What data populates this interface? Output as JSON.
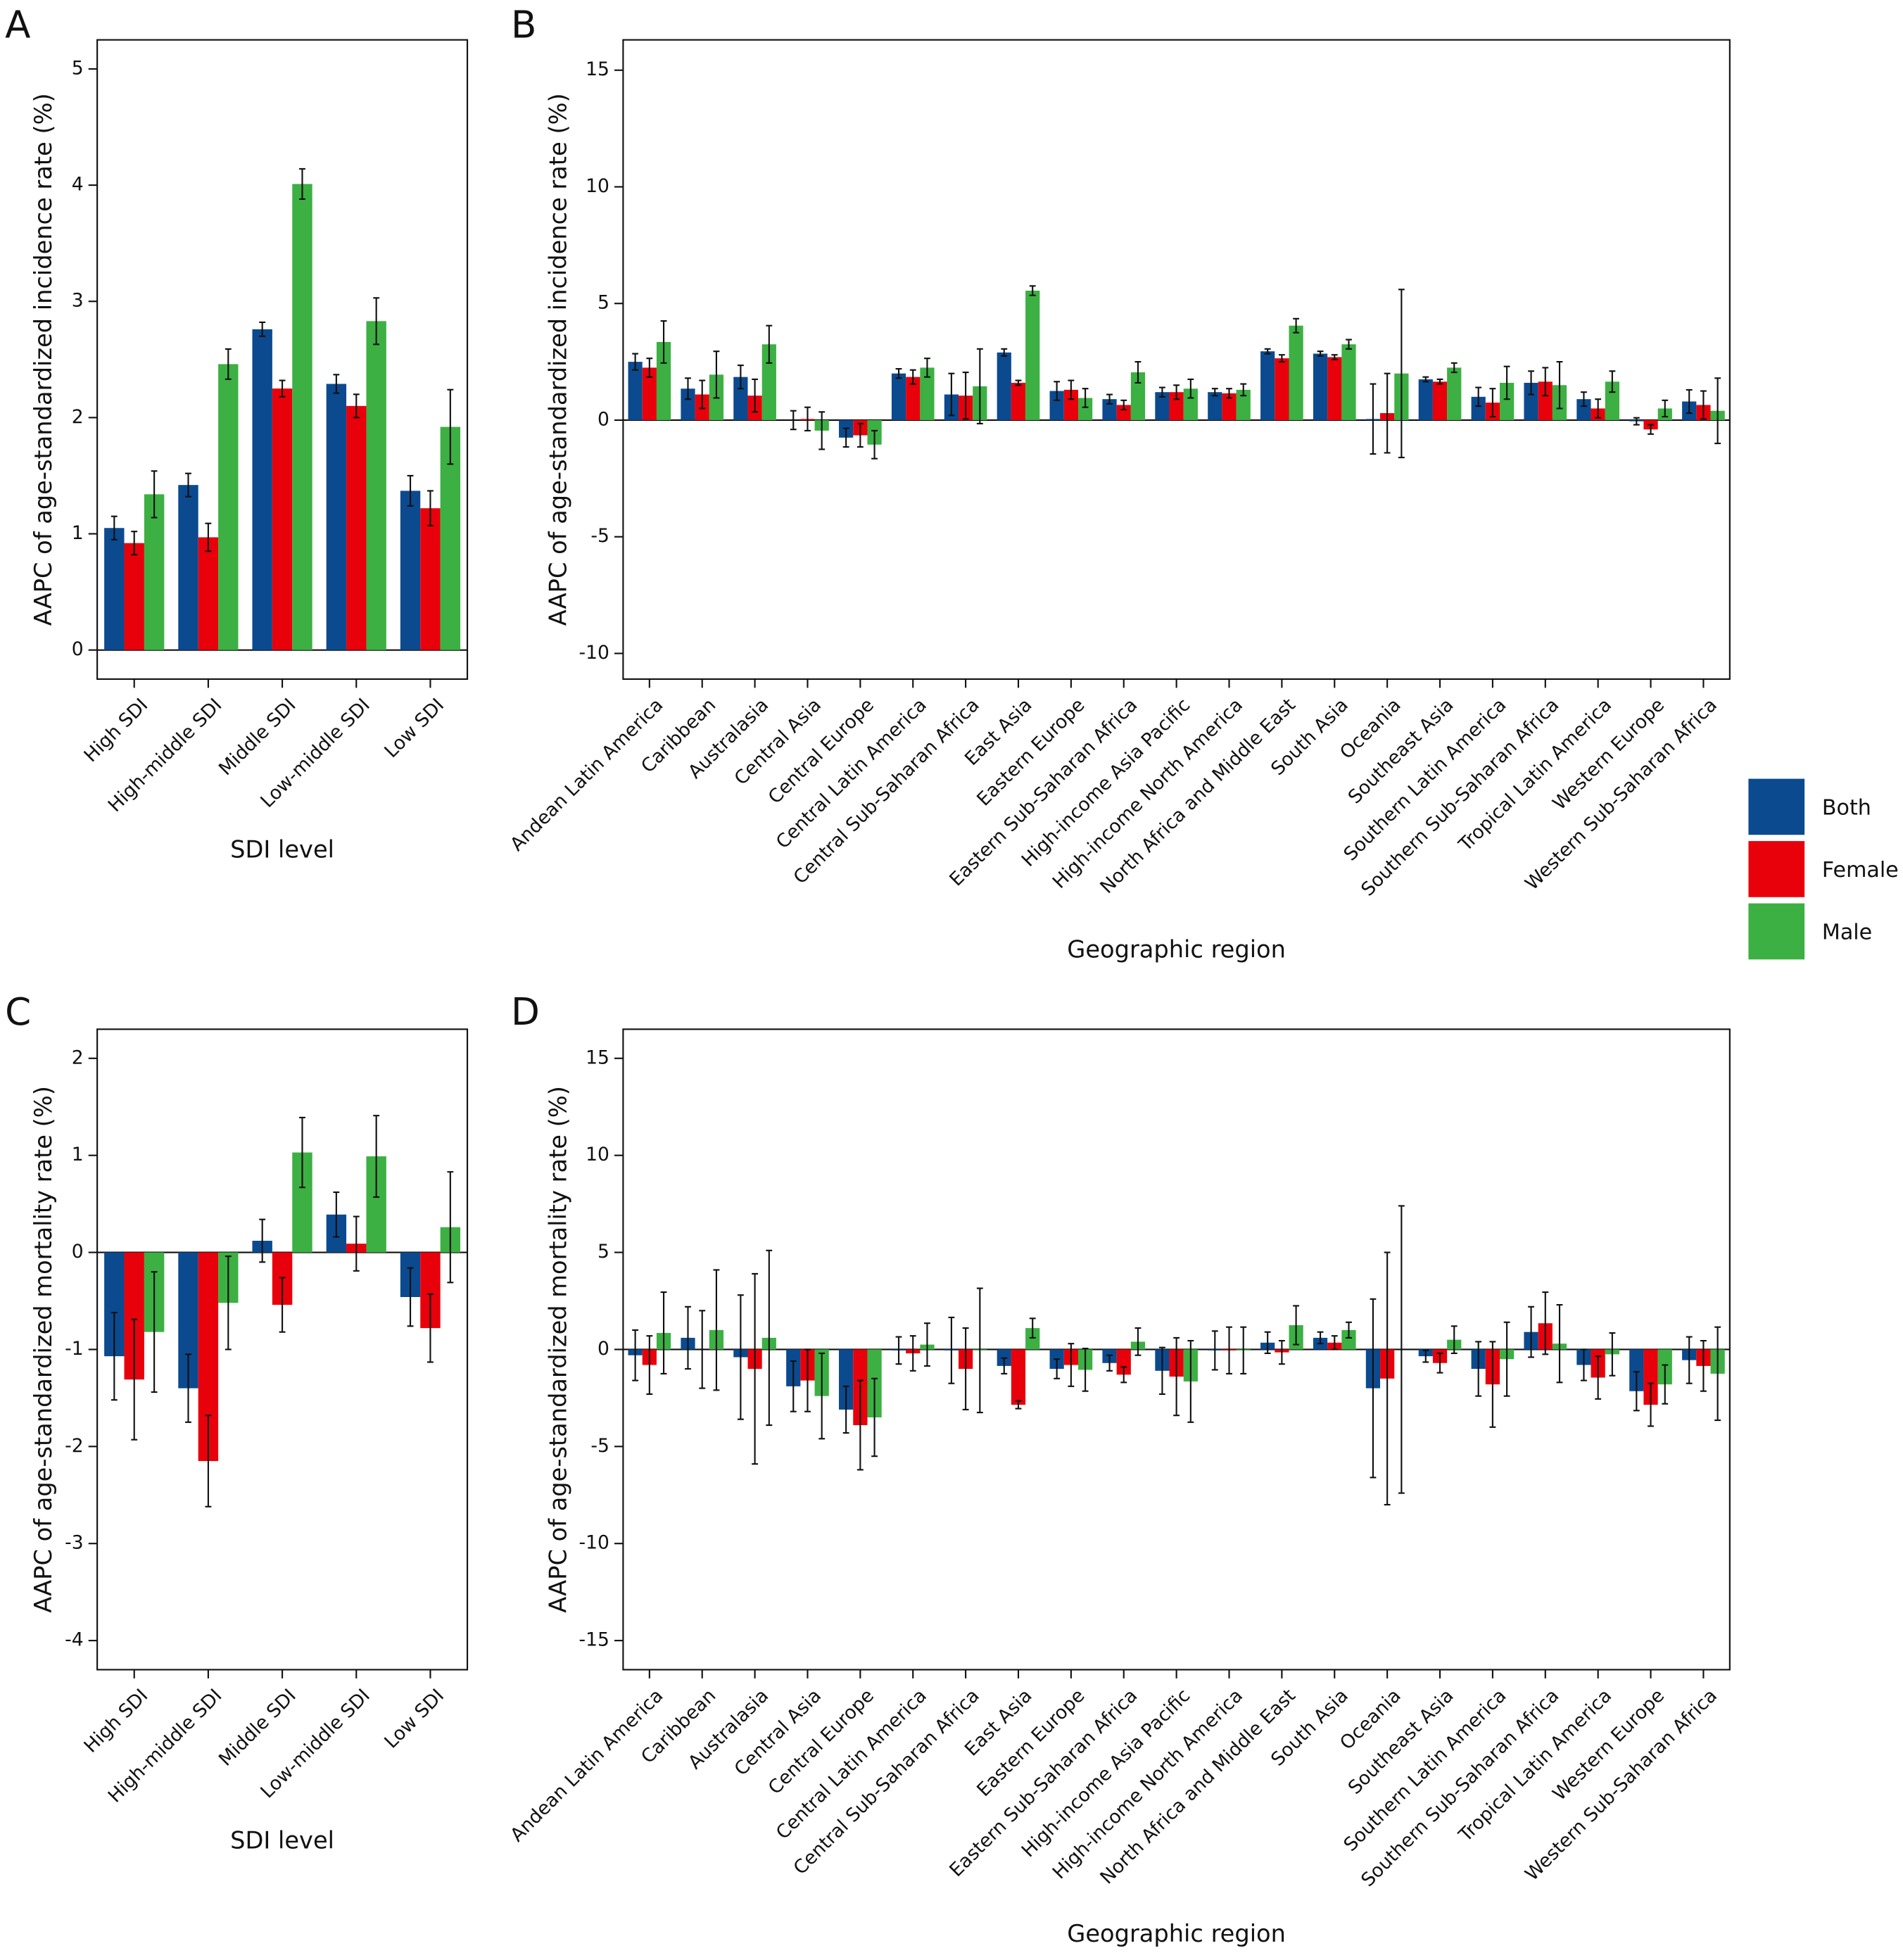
{
  "chart_data": [
    {
      "type": "bar",
      "label": "A",
      "y_label": "AAPC of age-standardized incidence rate (%)",
      "x_label": "SDI level",
      "categories": [
        "High SDI",
        "High-middle SDI",
        "Middle SDI",
        "Low-middle SDI",
        "Low SDI"
      ],
      "series": [
        {
          "name": "Both",
          "color": "#0b4a8f",
          "values": [
            1.05,
            1.42,
            2.76,
            2.29,
            1.37
          ],
          "errors": [
            0.1,
            0.1,
            0.06,
            0.08,
            0.13
          ]
        },
        {
          "name": "Female",
          "color": "#e8000b",
          "values": [
            0.92,
            0.97,
            2.25,
            2.1,
            1.22
          ],
          "errors": [
            0.1,
            0.12,
            0.07,
            0.1,
            0.15
          ]
        },
        {
          "name": "Male",
          "color": "#3cb043",
          "values": [
            1.34,
            2.46,
            4.01,
            2.83,
            1.92
          ],
          "errors": [
            0.2,
            0.13,
            0.13,
            0.2,
            0.32
          ]
        }
      ],
      "ylim": [
        -0.25,
        5.25
      ],
      "yticks": [
        0,
        1,
        2,
        3,
        4,
        5
      ],
      "legend": "right"
    },
    {
      "type": "bar",
      "label": "B",
      "y_label": "AAPC of age-standardized incidence rate (%)",
      "x_label": "Geographic region",
      "categories": [
        "Andean Latin America",
        "Caribbean",
        "Australasia",
        "Central Asia",
        "Central Europe",
        "Central Latin America",
        "Central Sub-Saharan Africa",
        "East Asia",
        "Eastern Europe",
        "Eastern Sub-Saharan Africa",
        "High-income Asia Pacific",
        "High-income North America",
        "North Africa and Middle East",
        "South Asia",
        "Oceania",
        "Southeast Asia",
        "Southern Latin America",
        "Southern Sub-Saharan Africa",
        "Tropical Latin America",
        "Western Europe",
        "Western Sub-Saharan Africa"
      ],
      "series": [
        {
          "color": "#0b4a8f",
          "values": [
            2.5,
            1.35,
            1.85,
            0.0,
            -0.75,
            2.0,
            1.1,
            2.9,
            1.25,
            0.9,
            1.2,
            1.2,
            2.95,
            2.85,
            0.05,
            1.75,
            1.0,
            1.6,
            0.9,
            -0.05,
            0.8
          ],
          "errors": [
            0.35,
            0.45,
            0.5,
            0.4,
            0.4,
            0.2,
            0.9,
            0.15,
            0.4,
            0.2,
            0.2,
            0.15,
            0.1,
            0.1,
            1.5,
            0.1,
            0.4,
            0.5,
            0.3,
            0.15,
            0.5
          ]
        },
        {
          "color": "#e8000b",
          "values": [
            2.25,
            1.1,
            1.05,
            0.05,
            -0.65,
            1.85,
            1.05,
            1.6,
            1.3,
            0.65,
            1.2,
            1.15,
            2.65,
            2.7,
            0.3,
            1.65,
            0.75,
            1.65,
            0.5,
            -0.4,
            0.65
          ],
          "errors": [
            0.4,
            0.6,
            0.7,
            0.5,
            0.5,
            0.3,
            1.0,
            0.1,
            0.4,
            0.2,
            0.3,
            0.2,
            0.15,
            0.1,
            1.7,
            0.1,
            0.6,
            0.6,
            0.4,
            0.2,
            0.6
          ]
        },
        {
          "color": "#3cb043",
          "values": [
            3.35,
            1.95,
            3.25,
            -0.45,
            -1.05,
            2.25,
            1.45,
            5.55,
            0.95,
            2.05,
            1.35,
            1.3,
            4.05,
            3.25,
            2.0,
            2.25,
            1.6,
            1.5,
            1.65,
            0.5,
            0.4
          ],
          "errors": [
            0.9,
            1.0,
            0.8,
            0.8,
            0.6,
            0.4,
            1.6,
            0.2,
            0.4,
            0.45,
            0.4,
            0.25,
            0.3,
            0.2,
            3.6,
            0.2,
            0.7,
            1.0,
            0.45,
            0.35,
            1.4
          ]
        }
      ],
      "ylim": [
        -11.1,
        16.3
      ],
      "yticks": [
        -10,
        -5,
        0,
        5,
        10,
        15
      ]
    },
    {
      "type": "bar",
      "label": "C",
      "y_label": "AAPC of age-standardized mortality rate (%)",
      "x_label": "SDI level",
      "categories": [
        "High SDI",
        "High-middle SDI",
        "Middle SDI",
        "Low-middle SDI",
        "Low SDI"
      ],
      "series": [
        {
          "color": "#0b4a8f",
          "values": [
            -1.07,
            -1.4,
            0.12,
            0.39,
            -0.46
          ],
          "errors": [
            0.45,
            0.35,
            0.22,
            0.23,
            0.3
          ]
        },
        {
          "color": "#e8000b",
          "values": [
            -1.31,
            -2.15,
            -0.54,
            0.09,
            -0.78
          ],
          "errors": [
            0.62,
            0.47,
            0.28,
            0.28,
            0.35
          ]
        },
        {
          "color": "#3cb043",
          "values": [
            -0.82,
            -0.52,
            1.03,
            0.99,
            0.26
          ],
          "errors": [
            0.62,
            0.48,
            0.36,
            0.42,
            0.57
          ]
        }
      ],
      "ylim": [
        -4.3,
        2.3
      ],
      "yticks": [
        -4,
        -3,
        -2,
        -1,
        0,
        1,
        2
      ]
    },
    {
      "type": "bar",
      "label": "D",
      "y_label": "AAPC of age-standardized mortality rate (%)",
      "x_label": "Geographic region",
      "categories": [
        "Andean Latin America",
        "Caribbean",
        "Australasia",
        "Central Asia",
        "Central Europe",
        "Central Latin America",
        "Central Sub-Saharan Africa",
        "East Asia",
        "Eastern Europe",
        "Eastern Sub-Saharan Africa",
        "High-income Asia Pacific",
        "High-income North America",
        "North Africa and Middle East",
        "South Asia",
        "Oceania",
        "Southeast Asia",
        "Southern Latin America",
        "Southern Sub-Saharan Africa",
        "Tropical Latin America",
        "Western Europe",
        "Western Sub-Saharan Africa"
      ],
      "series": [
        {
          "color": "#0b4a8f",
          "values": [
            -0.3,
            0.6,
            -0.4,
            -1.9,
            -3.1,
            -0.05,
            -0.05,
            -0.85,
            -1.0,
            -0.7,
            -1.1,
            -0.05,
            0.35,
            0.6,
            -2.0,
            -0.35,
            -1.0,
            0.9,
            -0.8,
            -2.15,
            -0.55
          ],
          "errors": [
            1.3,
            1.6,
            3.2,
            1.3,
            1.2,
            0.7,
            1.7,
            0.4,
            0.5,
            0.4,
            1.2,
            1.0,
            0.55,
            0.3,
            4.6,
            0.3,
            1.4,
            1.3,
            0.8,
            1.0,
            1.2
          ]
        },
        {
          "color": "#e8000b",
          "values": [
            -0.8,
            0.0,
            -1.0,
            -1.6,
            -3.9,
            -0.2,
            -1.0,
            -2.85,
            -0.8,
            -1.3,
            -1.4,
            -0.05,
            -0.15,
            0.35,
            -1.5,
            -0.7,
            -1.8,
            1.35,
            -1.45,
            -2.85,
            -0.85
          ],
          "errors": [
            1.5,
            2.0,
            4.9,
            1.6,
            2.3,
            0.9,
            2.1,
            0.2,
            1.1,
            0.4,
            2.0,
            1.2,
            0.6,
            0.35,
            6.5,
            0.5,
            2.2,
            1.6,
            1.1,
            1.1,
            1.3
          ]
        },
        {
          "color": "#3cb043",
          "values": [
            0.85,
            1.0,
            0.6,
            -2.4,
            -3.5,
            0.25,
            -0.05,
            1.1,
            -1.05,
            0.4,
            -1.65,
            -0.05,
            1.25,
            1.0,
            0.0,
            0.5,
            -0.5,
            0.3,
            -0.25,
            -1.8,
            -1.25
          ],
          "errors": [
            2.1,
            3.1,
            4.5,
            2.2,
            2.0,
            1.1,
            3.2,
            0.5,
            1.1,
            0.7,
            2.1,
            1.2,
            1.0,
            0.4,
            7.4,
            0.7,
            1.9,
            2.0,
            1.1,
            1.0,
            2.4
          ]
        }
      ],
      "ylim": [
        -16.5,
        16.5
      ],
      "yticks": [
        -15,
        -10,
        -5,
        0,
        5,
        10,
        15
      ]
    }
  ]
}
